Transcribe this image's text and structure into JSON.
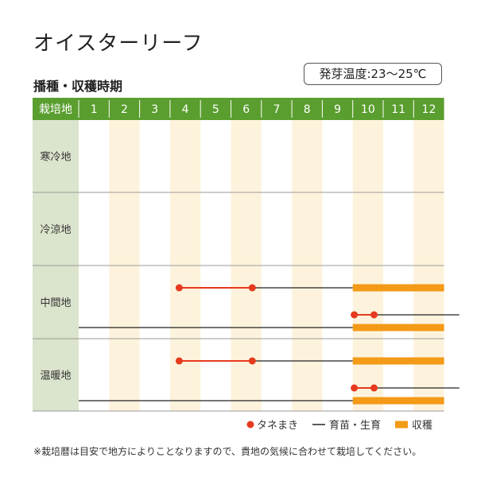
{
  "title": "オイスターリーフ",
  "subtitle": "播種・収穫時期",
  "temperature_note": "発芽温度:23〜25℃",
  "footnote": "※栽培暦は目安で地方によりことなりますので、貴地の気候に合わせて栽培してください。",
  "colors": {
    "header_green": "#5a9e2f",
    "row_label_bg": "#dbe4cc",
    "stripe": "#fdf3dc",
    "sowing": "#e63a1e",
    "harvest": "#f39a17",
    "growing": "#222222"
  },
  "chart_data": {
    "type": "table",
    "header_label": "栽培地",
    "months": [
      "1",
      "2",
      "3",
      "4",
      "5",
      "6",
      "7",
      "8",
      "9",
      "10",
      "11",
      "12"
    ],
    "legend": [
      {
        "key": "sowing",
        "label": "タネまき",
        "symbol": "dot"
      },
      {
        "key": "growing",
        "label": "育苗・生育",
        "symbol": "line"
      },
      {
        "key": "harvest",
        "label": "収穫",
        "symbol": "bar"
      }
    ],
    "regions": [
      {
        "name": "寒冷地",
        "tracks": []
      },
      {
        "name": "冷涼地",
        "tracks": []
      },
      {
        "name": "中間地",
        "tracks": [
          {
            "sowing": [
              3.3,
              5.7
            ],
            "growing": [
              5.7,
              9.0
            ],
            "harvest": [
              9.0,
              12.0
            ]
          },
          {
            "sowing": [
              9.05,
              9.7
            ],
            "growing": [
              9.7,
              12.5
            ],
            "harvest": null
          },
          {
            "sowing": null,
            "growing": [
              0.0,
              9.0
            ],
            "harvest": [
              9.0,
              12.0
            ]
          }
        ]
      },
      {
        "name": "温暖地",
        "tracks": [
          {
            "sowing": [
              3.3,
              5.7
            ],
            "growing": [
              5.7,
              9.0
            ],
            "harvest": [
              9.0,
              12.0
            ]
          },
          {
            "sowing": [
              9.05,
              9.7
            ],
            "growing": [
              9.7,
              12.5
            ],
            "harvest": null
          },
          {
            "sowing": null,
            "growing": [
              0.0,
              9.0
            ],
            "harvest": [
              9.0,
              12.0
            ]
          }
        ]
      }
    ]
  }
}
